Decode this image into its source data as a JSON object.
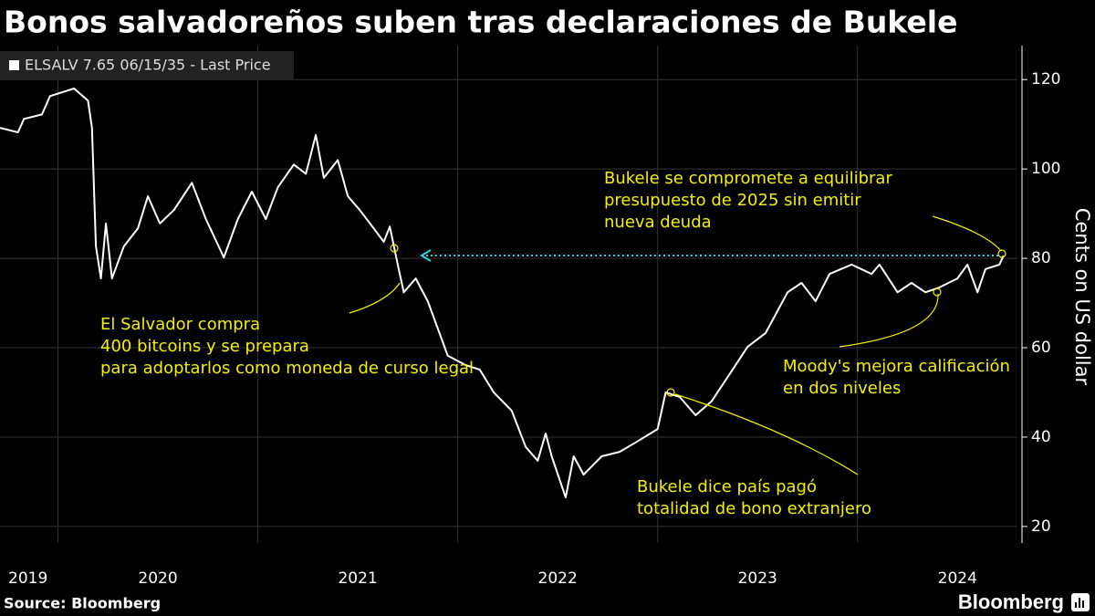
{
  "chart_data": {
    "type": "line",
    "title": "Bonos salvadoreños suben tras declaraciones de Bukele",
    "y_axis_label": "Cents on US dollar",
    "source": "Source:  Bloomberg",
    "brand": "Bloomberg",
    "xlim": [
      2019.71,
      2024.8
    ],
    "ylim": [
      16.3,
      127.6
    ],
    "yticks": [
      20,
      40,
      60,
      80,
      100,
      120
    ],
    "xgrid": [
      2020,
      2021,
      2022,
      2023,
      2024
    ],
    "xticks": [
      {
        "value": 2019.85,
        "label": "2019"
      },
      {
        "value": 2020.5,
        "label": "2020"
      },
      {
        "value": 2021.5,
        "label": "2021"
      },
      {
        "value": 2022.5,
        "label": "2022"
      },
      {
        "value": 2023.5,
        "label": "2023"
      },
      {
        "value": 2024.5,
        "label": "2024"
      }
    ],
    "grid": true,
    "legend": "top-left",
    "series": [
      {
        "name": "ELSALV 7.65 06/15/35 - Last Price",
        "color": "#000000",
        "x": [
          2019.71,
          2019.8,
          2019.83,
          2019.92,
          2019.96,
          2020.08,
          2020.15,
          2020.17,
          2020.19,
          2020.215,
          2020.24,
          2020.27,
          2020.33,
          2020.4,
          2020.45,
          2020.51,
          2020.58,
          2020.67,
          2020.74,
          2020.83,
          2020.9,
          2020.97,
          2021.04,
          2021.1,
          2021.18,
          2021.24,
          2021.29,
          2021.33,
          2021.4,
          2021.45,
          2021.51,
          2021.58,
          2021.63,
          2021.66,
          2021.7,
          2021.73,
          2021.79,
          2021.85,
          2021.95,
          2022.04,
          2022.11,
          2022.18,
          2022.27,
          2022.34,
          2022.4,
          2022.44,
          2022.47,
          2022.54,
          2022.58,
          2022.63,
          2022.72,
          2022.81,
          2022.89,
          2023.0,
          2023.04,
          2023.11,
          2023.19,
          2023.27,
          2023.36,
          2023.45,
          2023.54,
          2023.65,
          2023.72,
          2023.79,
          2023.86,
          2023.97,
          2024.07,
          2024.11,
          2024.2,
          2024.27,
          2024.34,
          2024.41,
          2024.5,
          2024.55,
          2024.6,
          2024.64,
          2024.71,
          2024.73
        ],
        "values": [
          109.2,
          108.2,
          111.2,
          112.2,
          116.3,
          118.0,
          115.3,
          109.2,
          82.7,
          75.5,
          87.8,
          75.5,
          82.7,
          86.7,
          93.9,
          87.8,
          90.8,
          96.9,
          88.8,
          80.2,
          88.8,
          94.9,
          88.8,
          95.9,
          101.0,
          98.9,
          107.6,
          98.0,
          102.0,
          93.9,
          90.8,
          86.7,
          83.7,
          87.1,
          78.6,
          72.4,
          75.5,
          70.4,
          58.2,
          56.1,
          55.1,
          50.0,
          45.9,
          37.8,
          34.7,
          40.8,
          35.7,
          26.5,
          35.7,
          31.6,
          35.7,
          36.7,
          38.8,
          41.8,
          50.0,
          49.0,
          44.9,
          48.0,
          54.1,
          60.2,
          63.3,
          72.4,
          74.5,
          70.4,
          76.5,
          78.6,
          76.5,
          78.6,
          72.4,
          74.5,
          72.4,
          73.5,
          75.5,
          78.6,
          72.4,
          77.6,
          78.6,
          80.6
        ]
      }
    ],
    "annotations": [
      {
        "lines": [
          "El Salvador compra",
          "400 bitcoins y se prepara",
          "para adoptarlos como moneda de curso legal"
        ]
      },
      {
        "lines": [
          "Bukele dice país pagó",
          "totalidad de bono extranjero"
        ]
      },
      {
        "lines": [
          "Moody's mejora calificación",
          "en dos niveles"
        ]
      },
      {
        "lines": [
          "Bukele se compromete a equilibrar",
          "presupuesto de 2025 sin emitir",
          "nueva deuda"
        ]
      }
    ]
  }
}
